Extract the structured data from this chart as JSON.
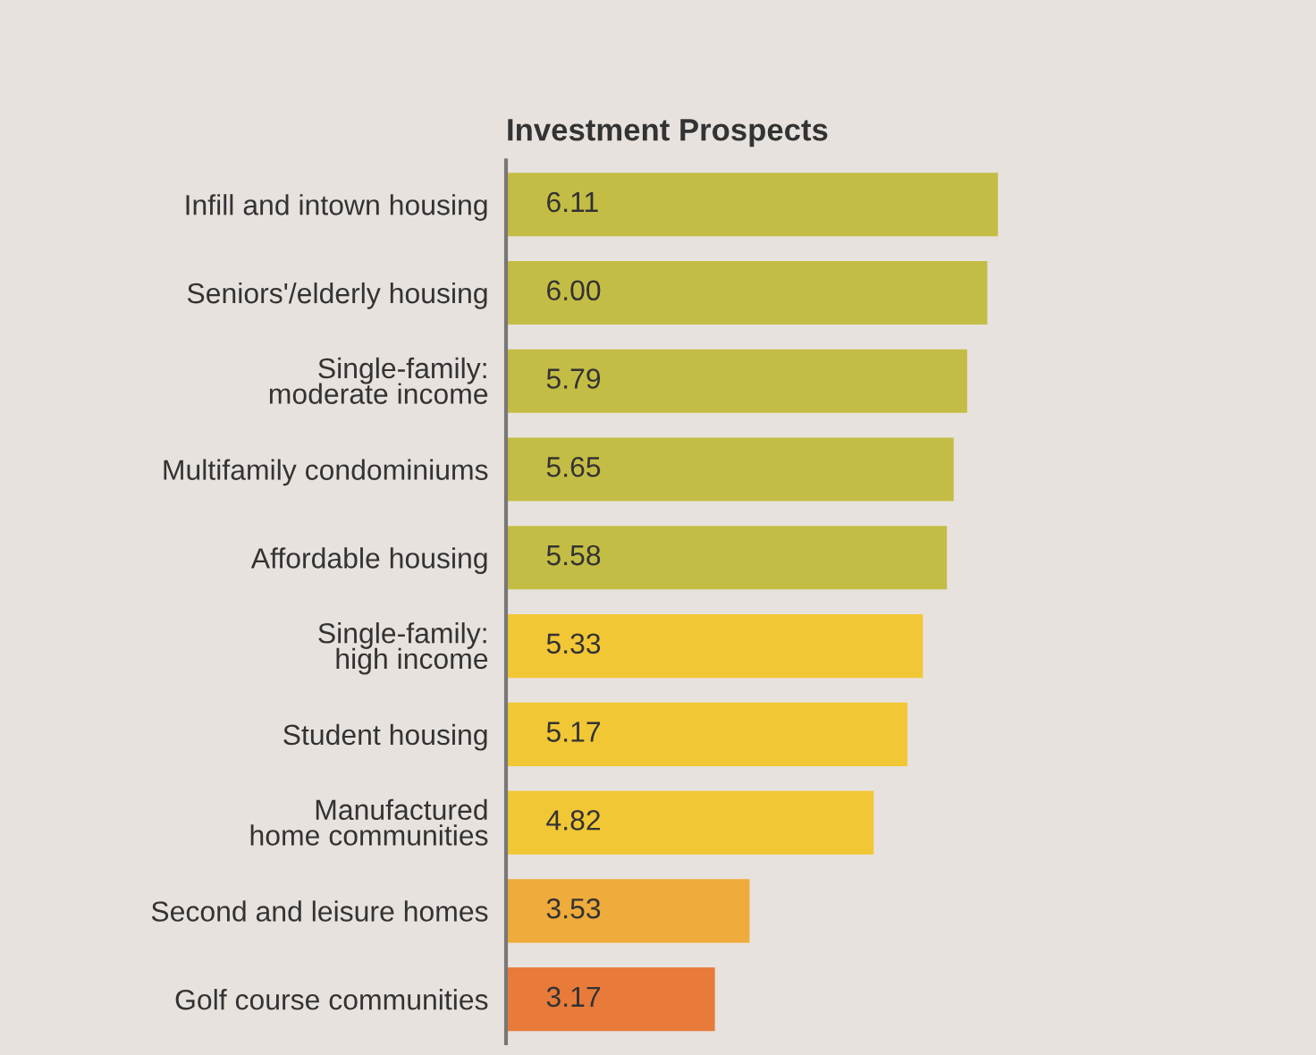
{
  "chart_data": {
    "type": "bar",
    "orientation": "horizontal",
    "title": "Investment Prospects",
    "categories": [
      "Infill and intown housing",
      "Seniors'/elderly housing",
      "Single-family:\nmoderate income",
      "Multifamily condominiums",
      "Affordable housing",
      "Single-family:\nhigh income",
      "Student housing",
      "Manufactured\nhome communities",
      "Second and leisure homes",
      "Golf course communities"
    ],
    "values": [
      6.11,
      6.0,
      5.79,
      5.65,
      5.58,
      5.33,
      5.17,
      4.82,
      3.53,
      3.17
    ],
    "colors": [
      "#c4bd45",
      "#c4bd45",
      "#c4bd45",
      "#c4bd45",
      "#c4bd45",
      "#f2c735",
      "#f2c735",
      "#f2c735",
      "#efab3b",
      "#e97b3a"
    ],
    "value_labels": [
      "6.11",
      "6.00",
      "5.79",
      "5.65",
      "5.58",
      "5.33",
      "5.17",
      "4.82",
      "3.53",
      "3.17"
    ],
    "xlim": [
      1,
      9.4
    ],
    "grid": false
  }
}
